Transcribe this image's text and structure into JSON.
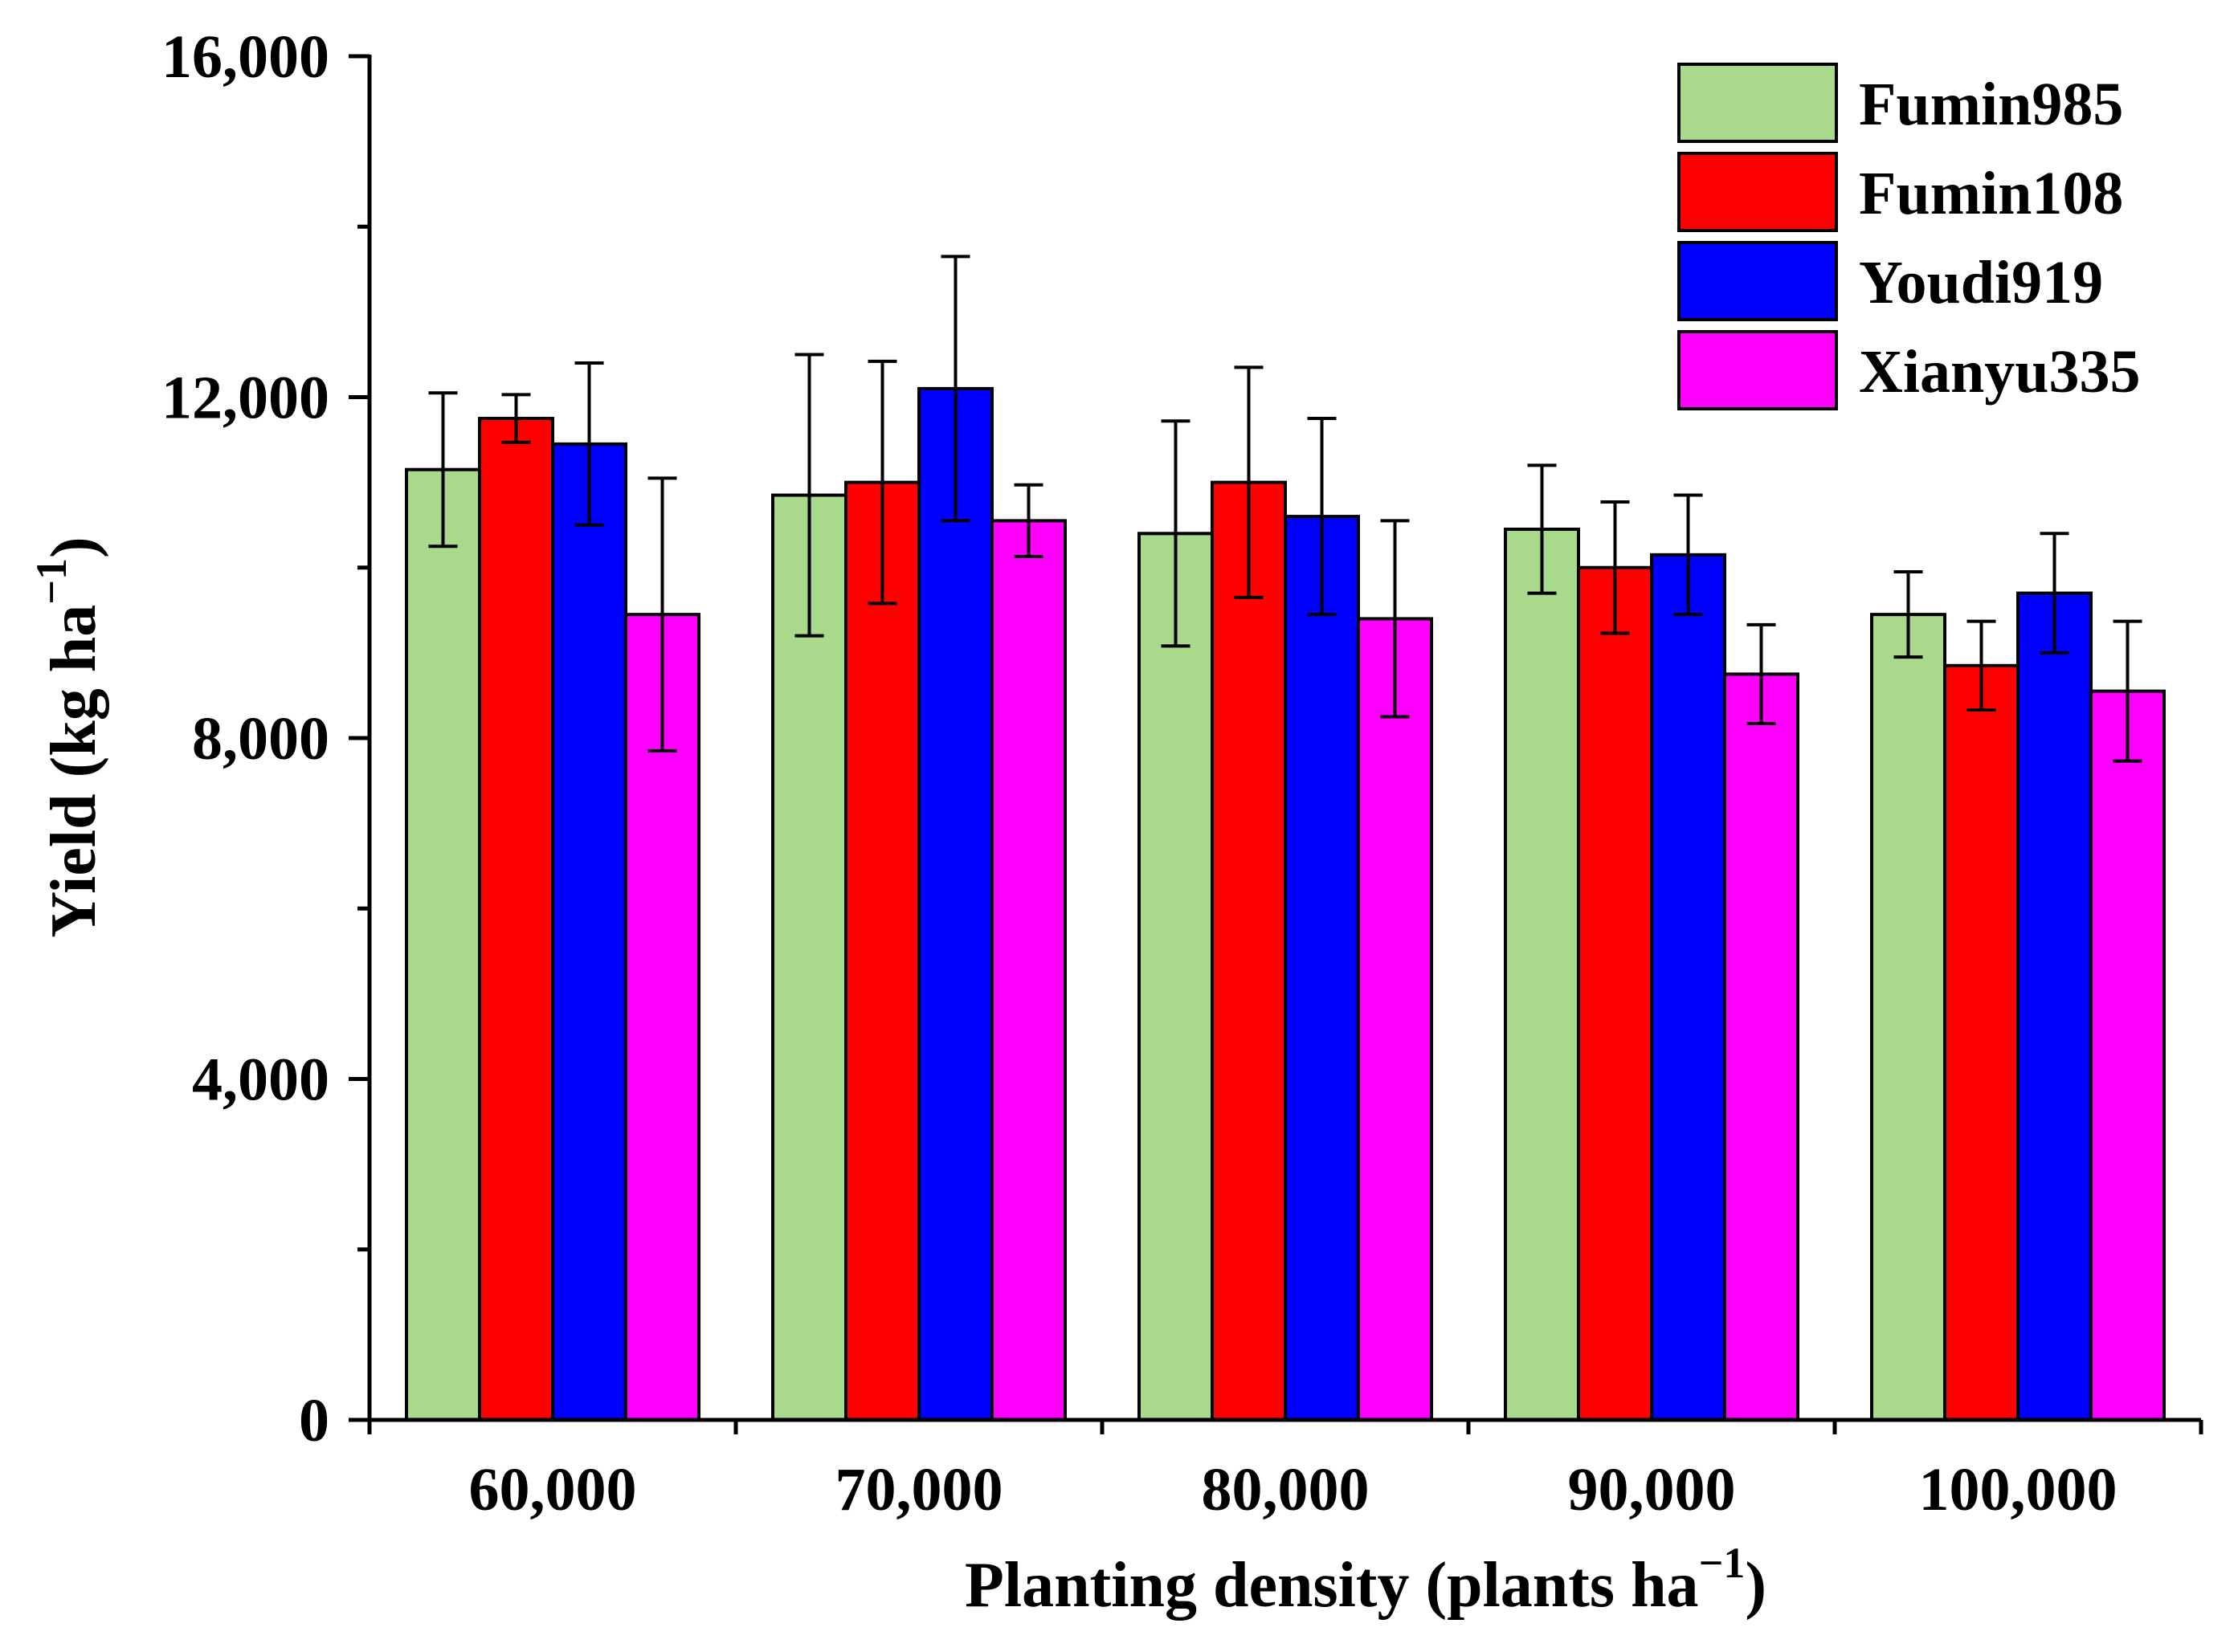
{
  "chart_data": {
    "type": "bar",
    "title": "",
    "xlabel_main": "Planting density (plants ha",
    "xlabel_sup": "−1",
    "xlabel_close": ")",
    "ylabel_main": "Yield (kg ha",
    "ylabel_sup": "−1",
    "ylabel_close": ")",
    "categories": [
      "60,000",
      "70,000",
      "80,000",
      "90,000",
      "100,000"
    ],
    "ylim": [
      0,
      16000
    ],
    "yticks": [
      0,
      4000,
      8000,
      12000,
      16000
    ],
    "ytick_labels": [
      "0",
      "4,000",
      "8,000",
      "12,000",
      "16,000"
    ],
    "legend_position": "top-right",
    "series": [
      {
        "name": "Fumin985",
        "color": "#a9d98a",
        "values": [
          11150,
          10850,
          10400,
          10450,
          9450
        ],
        "errors": [
          900,
          1650,
          1320,
          750,
          500
        ]
      },
      {
        "name": "Fumin108",
        "color": "#ff0000",
        "values": [
          11750,
          11000,
          11000,
          10000,
          8850
        ],
        "errors": [
          280,
          1420,
          1350,
          770,
          520
        ]
      },
      {
        "name": "Youdi919",
        "color": "#0000ff",
        "values": [
          11450,
          12100,
          10600,
          10150,
          9700
        ],
        "errors": [
          950,
          1550,
          1150,
          700,
          700
        ]
      },
      {
        "name": "Xianyu335",
        "color": "#ff00ff",
        "values": [
          9450,
          10550,
          9400,
          8750,
          8550
        ],
        "errors": [
          1600,
          420,
          1150,
          580,
          820
        ]
      }
    ]
  }
}
